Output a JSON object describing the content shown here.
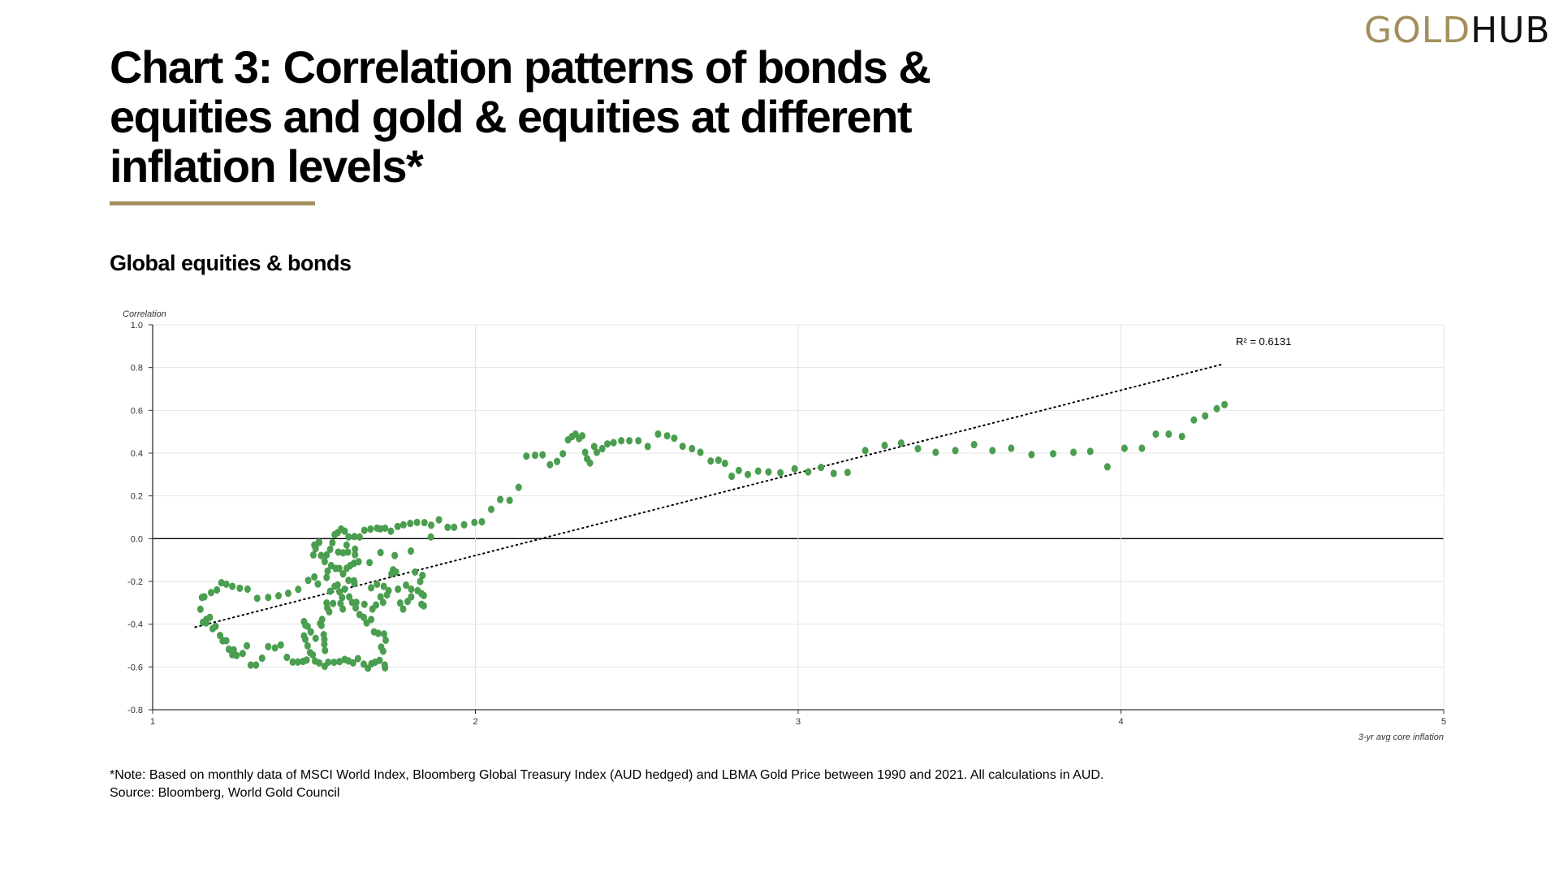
{
  "logo": {
    "gold": "GOLD",
    "hub": "HUB"
  },
  "title": "Chart 3: Correlation patterns of bonds & equities and gold & equities at different inflation levels*",
  "subtitle": "Global equities & bonds",
  "footnote": {
    "note": "*Note: Based on monthly data of MSCI World Index, Bloomberg Global Treasury Index (AUD hedged) and LBMA Gold Price between 1990 and 2021. All calculations in AUD.",
    "source": "Source: Bloomberg, World Gold Council"
  },
  "colors": {
    "accent": "#a38f5c",
    "points": "#4a9e4f"
  },
  "chart_data": {
    "type": "scatter",
    "title": "Global equities & bonds",
    "xlabel": "3-yr avg core inflation",
    "ylabel": "Correlation",
    "xlim": [
      1,
      5
    ],
    "ylim": [
      -0.8,
      1.0
    ],
    "xticks": [
      "1",
      "2",
      "3",
      "4",
      "5"
    ],
    "yticks": [
      "1.0",
      "0.8",
      "0.6",
      "0.4",
      "0.2",
      "0.0",
      "-0.2",
      "-0.4",
      "-0.6",
      "-0.8"
    ],
    "grid": true,
    "trendline": {
      "type": "linear",
      "label": "R² = 0.6131",
      "x": [
        1.132,
        4.313
      ],
      "y": [
        -0.414,
        0.815
      ]
    },
    "points": [
      [
        2.566,
        0.489
      ],
      [
        2.594,
        0.481
      ],
      [
        2.616,
        0.47
      ],
      [
        2.642,
        0.432
      ],
      [
        2.671,
        0.421
      ],
      [
        2.697,
        0.404
      ],
      [
        2.729,
        0.363
      ],
      [
        2.753,
        0.367
      ],
      [
        2.773,
        0.352
      ],
      [
        2.794,
        0.292
      ],
      [
        2.816,
        0.319
      ],
      [
        2.844,
        0.3
      ],
      [
        2.876,
        0.316
      ],
      [
        2.908,
        0.312
      ],
      [
        2.945,
        0.308
      ],
      [
        2.989,
        0.327
      ],
      [
        3.031,
        0.312
      ],
      [
        3.071,
        0.333
      ],
      [
        3.11,
        0.305
      ],
      [
        3.153,
        0.31
      ],
      [
        3.208,
        0.412
      ],
      [
        3.268,
        0.436
      ],
      [
        3.319,
        0.447
      ],
      [
        3.371,
        0.421
      ],
      [
        3.426,
        0.404
      ],
      [
        3.487,
        0.412
      ],
      [
        3.545,
        0.44
      ],
      [
        3.602,
        0.412
      ],
      [
        3.66,
        0.423
      ],
      [
        3.723,
        0.393
      ],
      [
        3.79,
        0.397
      ],
      [
        3.853,
        0.404
      ],
      [
        3.905,
        0.408
      ],
      [
        3.958,
        0.336
      ],
      [
        4.011,
        0.423
      ],
      [
        4.065,
        0.423
      ],
      [
        4.108,
        0.489
      ],
      [
        4.148,
        0.489
      ],
      [
        4.189,
        0.478
      ],
      [
        4.226,
        0.555
      ],
      [
        4.261,
        0.574
      ],
      [
        4.297,
        0.608
      ],
      [
        4.321,
        0.627
      ],
      [
        2.534,
        0.431
      ],
      [
        2.505,
        0.458
      ],
      [
        2.477,
        0.458
      ],
      [
        2.452,
        0.458
      ],
      [
        2.428,
        0.449
      ],
      [
        2.409,
        0.443
      ],
      [
        2.393,
        0.421
      ],
      [
        2.376,
        0.404
      ],
      [
        2.368,
        0.431
      ],
      [
        2.355,
        0.354
      ],
      [
        2.346,
        0.374
      ],
      [
        2.34,
        0.404
      ],
      [
        2.331,
        0.481
      ],
      [
        2.321,
        0.468
      ],
      [
        2.31,
        0.489
      ],
      [
        2.299,
        0.477
      ],
      [
        2.287,
        0.462
      ],
      [
        2.271,
        0.397
      ],
      [
        2.253,
        0.361
      ],
      [
        2.231,
        0.346
      ],
      [
        2.208,
        0.392
      ],
      [
        2.185,
        0.39
      ],
      [
        2.158,
        0.386
      ],
      [
        2.134,
        0.24
      ],
      [
        2.106,
        0.179
      ],
      [
        2.077,
        0.183
      ],
      [
        2.049,
        0.137
      ],
      [
        2.02,
        0.079
      ],
      [
        1.997,
        0.076
      ],
      [
        1.965,
        0.065
      ],
      [
        1.934,
        0.053
      ],
      [
        1.914,
        0.053
      ],
      [
        1.887,
        0.088
      ],
      [
        1.862,
        0.008
      ],
      [
        1.863,
        0.063
      ],
      [
        1.842,
        0.075
      ],
      [
        1.819,
        0.076
      ],
      [
        1.798,
        0.071
      ],
      [
        1.777,
        0.065
      ],
      [
        1.759,
        0.057
      ],
      [
        1.738,
        0.035
      ],
      [
        1.72,
        0.049
      ],
      [
        1.705,
        0.046
      ],
      [
        1.695,
        0.049
      ],
      [
        1.675,
        0.045
      ],
      [
        1.656,
        0.039
      ],
      [
        1.641,
        0.008
      ],
      [
        1.625,
        0.01
      ],
      [
        1.607,
        0.008
      ],
      [
        1.595,
        0.035
      ],
      [
        1.584,
        0.045
      ],
      [
        1.573,
        0.028
      ],
      [
        1.564,
        0.019
      ],
      [
        1.557,
        -0.019
      ],
      [
        1.55,
        -0.05
      ],
      [
        1.539,
        -0.076
      ],
      [
        1.533,
        -0.107
      ],
      [
        1.522,
        -0.079
      ],
      [
        1.501,
        -0.03
      ],
      [
        1.498,
        -0.076
      ],
      [
        1.505,
        -0.046
      ],
      [
        1.514,
        -0.019
      ],
      [
        1.516,
        -0.017
      ],
      [
        1.542,
        -0.152
      ],
      [
        1.553,
        -0.126
      ],
      [
        1.567,
        -0.139
      ],
      [
        1.578,
        -0.139
      ],
      [
        1.59,
        -0.165
      ],
      [
        1.601,
        -0.139
      ],
      [
        1.612,
        -0.126
      ],
      [
        1.624,
        -0.115
      ],
      [
        1.638,
        -0.108
      ],
      [
        1.627,
        -0.075
      ],
      [
        1.601,
        -0.03
      ],
      [
        1.59,
        -0.066
      ],
      [
        1.575,
        -0.063
      ],
      [
        1.605,
        -0.063
      ],
      [
        1.627,
        -0.049
      ],
      [
        1.672,
        -0.112
      ],
      [
        1.706,
        -0.065
      ],
      [
        1.75,
        -0.079
      ],
      [
        1.8,
        -0.058
      ],
      [
        1.745,
        -0.146
      ],
      [
        1.754,
        -0.156
      ],
      [
        1.74,
        -0.165
      ],
      [
        1.813,
        -0.156
      ],
      [
        1.836,
        -0.172
      ],
      [
        1.829,
        -0.2
      ],
      [
        1.539,
        -0.181
      ],
      [
        1.501,
        -0.179
      ],
      [
        1.482,
        -0.195
      ],
      [
        1.512,
        -0.212
      ],
      [
        1.451,
        -0.237
      ],
      [
        1.42,
        -0.255
      ],
      [
        1.39,
        -0.267
      ],
      [
        1.358,
        -0.275
      ],
      [
        1.324,
        -0.279
      ],
      [
        1.294,
        -0.236
      ],
      [
        1.27,
        -0.232
      ],
      [
        1.247,
        -0.223
      ],
      [
        1.228,
        -0.213
      ],
      [
        1.213,
        -0.206
      ],
      [
        1.199,
        -0.24
      ],
      [
        1.181,
        -0.252
      ],
      [
        1.16,
        -0.272
      ],
      [
        1.153,
        -0.275
      ],
      [
        1.148,
        -0.33
      ],
      [
        1.156,
        -0.391
      ],
      [
        1.166,
        -0.378
      ],
      [
        1.177,
        -0.368
      ],
      [
        1.166,
        -0.394
      ],
      [
        1.186,
        -0.421
      ],
      [
        1.195,
        -0.41
      ],
      [
        1.209,
        -0.453
      ],
      [
        1.217,
        -0.477
      ],
      [
        1.228,
        -0.477
      ],
      [
        1.236,
        -0.517
      ],
      [
        1.251,
        -0.52
      ],
      [
        1.247,
        -0.543
      ],
      [
        1.26,
        -0.546
      ],
      [
        1.279,
        -0.537
      ],
      [
        1.292,
        -0.501
      ],
      [
        1.304,
        -0.591
      ],
      [
        1.32,
        -0.591
      ],
      [
        1.339,
        -0.559
      ],
      [
        1.358,
        -0.505
      ],
      [
        1.379,
        -0.511
      ],
      [
        1.397,
        -0.497
      ],
      [
        1.416,
        -0.555
      ],
      [
        1.434,
        -0.577
      ],
      [
        1.45,
        -0.577
      ],
      [
        1.466,
        -0.574
      ],
      [
        1.477,
        -0.568
      ],
      [
        1.488,
        -0.533
      ],
      [
        1.496,
        -0.543
      ],
      [
        1.503,
        -0.572
      ],
      [
        1.516,
        -0.581
      ],
      [
        1.533,
        -0.597
      ],
      [
        1.544,
        -0.578
      ],
      [
        1.562,
        -0.578
      ],
      [
        1.579,
        -0.575
      ],
      [
        1.595,
        -0.565
      ],
      [
        1.607,
        -0.572
      ],
      [
        1.621,
        -0.581
      ],
      [
        1.636,
        -0.561
      ],
      [
        1.654,
        -0.587
      ],
      [
        1.667,
        -0.606
      ],
      [
        1.678,
        -0.585
      ],
      [
        1.689,
        -0.578
      ],
      [
        1.703,
        -0.569
      ],
      [
        1.719,
        -0.591
      ],
      [
        1.72,
        -0.604
      ],
      [
        1.469,
        -0.388
      ],
      [
        1.473,
        -0.404
      ],
      [
        1.48,
        -0.41
      ],
      [
        1.469,
        -0.455
      ],
      [
        1.473,
        -0.471
      ],
      [
        1.48,
        -0.501
      ],
      [
        1.49,
        -0.436
      ],
      [
        1.505,
        -0.466
      ],
      [
        1.519,
        -0.397
      ],
      [
        1.525,
        -0.378
      ],
      [
        1.523,
        -0.406
      ],
      [
        1.53,
        -0.449
      ],
      [
        1.532,
        -0.471
      ],
      [
        1.532,
        -0.494
      ],
      [
        1.534,
        -0.523
      ],
      [
        1.541,
        -0.324
      ],
      [
        1.547,
        -0.342
      ],
      [
        1.539,
        -0.301
      ],
      [
        1.559,
        -0.303
      ],
      [
        1.55,
        -0.246
      ],
      [
        1.564,
        -0.223
      ],
      [
        1.573,
        -0.217
      ],
      [
        1.579,
        -0.249
      ],
      [
        1.587,
        -0.275
      ],
      [
        1.589,
        -0.329
      ],
      [
        1.582,
        -0.303
      ],
      [
        1.595,
        -0.236
      ],
      [
        1.607,
        -0.195
      ],
      [
        1.609,
        -0.272
      ],
      [
        1.618,
        -0.298
      ],
      [
        1.631,
        -0.298
      ],
      [
        1.629,
        -0.324
      ],
      [
        1.625,
        -0.21
      ],
      [
        1.641,
        -0.355
      ],
      [
        1.654,
        -0.368
      ],
      [
        1.663,
        -0.394
      ],
      [
        1.677,
        -0.378
      ],
      [
        1.656,
        -0.307
      ],
      [
        1.677,
        -0.23
      ],
      [
        1.681,
        -0.329
      ],
      [
        1.695,
        -0.213
      ],
      [
        1.706,
        -0.272
      ],
      [
        1.714,
        -0.298
      ],
      [
        1.716,
        -0.223
      ],
      [
        1.731,
        -0.243
      ],
      [
        1.726,
        -0.263
      ],
      [
        1.692,
        -0.31
      ],
      [
        1.686,
        -0.436
      ],
      [
        1.699,
        -0.443
      ],
      [
        1.717,
        -0.446
      ],
      [
        1.722,
        -0.475
      ],
      [
        1.708,
        -0.507
      ],
      [
        1.714,
        -0.526
      ],
      [
        1.76,
        -0.236
      ],
      [
        1.785,
        -0.217
      ],
      [
        1.801,
        -0.236
      ],
      [
        1.801,
        -0.272
      ],
      [
        1.767,
        -0.301
      ],
      [
        1.776,
        -0.329
      ],
      [
        1.79,
        -0.294
      ],
      [
        1.821,
        -0.243
      ],
      [
        1.833,
        -0.257
      ],
      [
        1.84,
        -0.266
      ],
      [
        1.833,
        -0.307
      ],
      [
        1.84,
        -0.314
      ],
      [
        1.624,
        -0.197
      ]
    ]
  }
}
